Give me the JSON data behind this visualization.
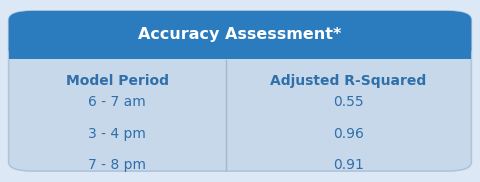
{
  "title": "Accuracy Assessment*",
  "title_bg_color": "#2b7bbf",
  "title_text_color": "#ffffff",
  "table_bg_color": "#c8d8eb",
  "outer_bg_color": "#dce8f5",
  "col_header_color": "#2f6faa",
  "data_text_color": "#2f6faa",
  "divider_color": "#a0b8d0",
  "col_headers": [
    "Model Period",
    "Adjusted R-Squared"
  ],
  "rows": [
    [
      "6 - 7 am",
      "0.55"
    ],
    [
      "3 - 4 pm",
      "0.96"
    ],
    [
      "7 - 8 pm",
      "0.91"
    ]
  ],
  "col_split": 0.47,
  "title_fontsize": 11.5,
  "header_fontsize": 10,
  "data_fontsize": 10,
  "fig_w": 4.8,
  "fig_h": 1.82
}
